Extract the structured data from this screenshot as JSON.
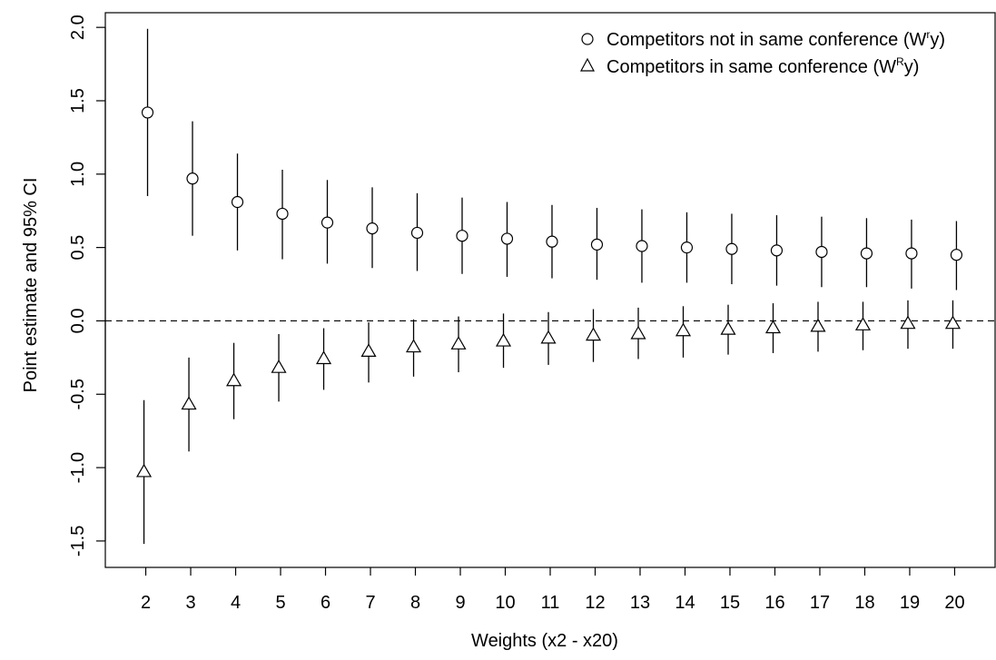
{
  "chart_data": {
    "type": "scatter",
    "xlabel": "Weights (x2 - x20)",
    "ylabel": "Point estimate and 95% CI",
    "x": [
      2,
      3,
      4,
      5,
      6,
      7,
      8,
      9,
      10,
      11,
      12,
      13,
      14,
      15,
      16,
      17,
      18,
      19,
      20
    ],
    "xlim": [
      1.1,
      20.9
    ],
    "ylim": [
      -1.68,
      2.1
    ],
    "yticks": [
      -1.5,
      -1.0,
      -0.5,
      0.0,
      0.5,
      1.0,
      1.5,
      2.0
    ],
    "ytick_labels": [
      "-1.5",
      "-1.0",
      "-0.5",
      "0.0",
      "0.5",
      "1.0",
      "1.5",
      "2.0"
    ],
    "xtick_labels": [
      "2",
      "3",
      "4",
      "5",
      "6",
      "7",
      "8",
      "9",
      "10",
      "11",
      "12",
      "13",
      "14",
      "15",
      "16",
      "17",
      "18",
      "19",
      "20"
    ],
    "reference_line": {
      "y": 0,
      "style": "dashed"
    },
    "legend": {
      "position": "top-right",
      "entries": [
        {
          "marker": "circle",
          "label_main": "Competitors not in same conference (W",
          "label_sup": "r",
          "label_end": "y)"
        },
        {
          "marker": "triangle",
          "label_main": "Competitors in same conference (W",
          "label_sup": "R",
          "label_end": "y)"
        }
      ]
    },
    "series": [
      {
        "marker": "circle",
        "x_offset": 0.04,
        "estimate": [
          1.42,
          0.97,
          0.81,
          0.73,
          0.67,
          0.63,
          0.6,
          0.58,
          0.56,
          0.54,
          0.52,
          0.51,
          0.5,
          0.49,
          0.48,
          0.47,
          0.46,
          0.46,
          0.45
        ],
        "ci_low": [
          0.85,
          0.58,
          0.48,
          0.42,
          0.39,
          0.36,
          0.34,
          0.32,
          0.3,
          0.29,
          0.28,
          0.26,
          0.26,
          0.25,
          0.24,
          0.23,
          0.23,
          0.22,
          0.21
        ],
        "ci_high": [
          1.99,
          1.36,
          1.14,
          1.03,
          0.96,
          0.91,
          0.87,
          0.84,
          0.81,
          0.79,
          0.77,
          0.76,
          0.74,
          0.73,
          0.72,
          0.71,
          0.7,
          0.69,
          0.68
        ]
      },
      {
        "marker": "triangle",
        "x_offset": -0.04,
        "estimate": [
          -1.03,
          -0.57,
          -0.41,
          -0.32,
          -0.26,
          -0.21,
          -0.18,
          -0.16,
          -0.14,
          -0.12,
          -0.1,
          -0.09,
          -0.07,
          -0.06,
          -0.05,
          -0.04,
          -0.03,
          -0.02,
          -0.02
        ],
        "ci_low": [
          -1.52,
          -0.89,
          -0.67,
          -0.55,
          -0.47,
          -0.42,
          -0.38,
          -0.35,
          -0.32,
          -0.3,
          -0.28,
          -0.26,
          -0.25,
          -0.23,
          -0.22,
          -0.21,
          -0.2,
          -0.19,
          -0.19
        ],
        "ci_high": [
          -0.54,
          -0.25,
          -0.15,
          -0.09,
          -0.05,
          -0.01,
          0.01,
          0.03,
          0.05,
          0.06,
          0.08,
          0.09,
          0.1,
          0.11,
          0.12,
          0.13,
          0.13,
          0.14,
          0.14
        ]
      }
    ]
  }
}
